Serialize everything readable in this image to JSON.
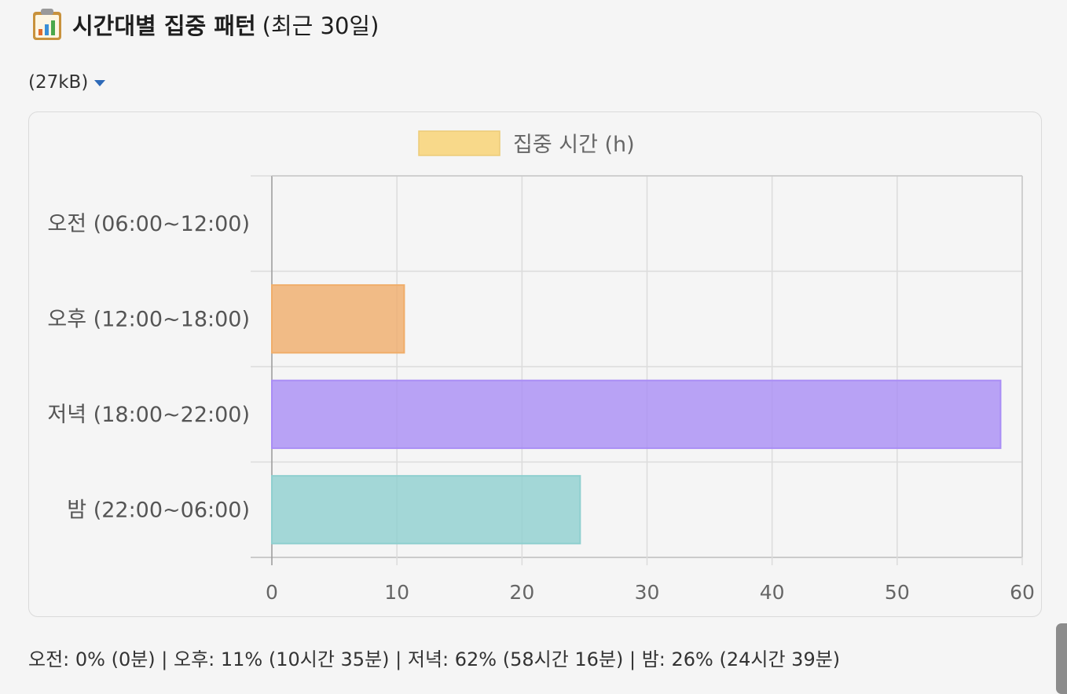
{
  "heading": {
    "icon": "bar-chart-clipboard-icon",
    "title": "시간대별 집중 패턴",
    "subtitle": "(최근 30일)"
  },
  "attachment": {
    "size": "(27kB)"
  },
  "chart_data": {
    "type": "bar",
    "orientation": "horizontal",
    "categories": [
      "오전 (06:00~12:00)",
      "오후 (12:00~18:00)",
      "저녁 (18:00~22:00)",
      "밤 (22:00~06:00)"
    ],
    "series": [
      {
        "name": "집중 시간 (h)",
        "values": [
          0,
          10.58,
          58.27,
          24.65
        ]
      }
    ],
    "bar_colors": [
      "#f5a623",
      "#f0ad6a",
      "#a98df5",
      "#8fcfcf"
    ],
    "legend_color": "#f8d98a",
    "xlim": [
      0,
      60
    ],
    "xticks": [
      "0",
      "10",
      "20",
      "30",
      "40",
      "50",
      "60"
    ],
    "grid": true,
    "legend_position": "top"
  },
  "summary": {
    "text": "오전: 0% (0분) | 오후: 11% (10시간 35분) | 저녁: 62% (58시간 16분) | 밤: 26% (24시간 39분)"
  }
}
